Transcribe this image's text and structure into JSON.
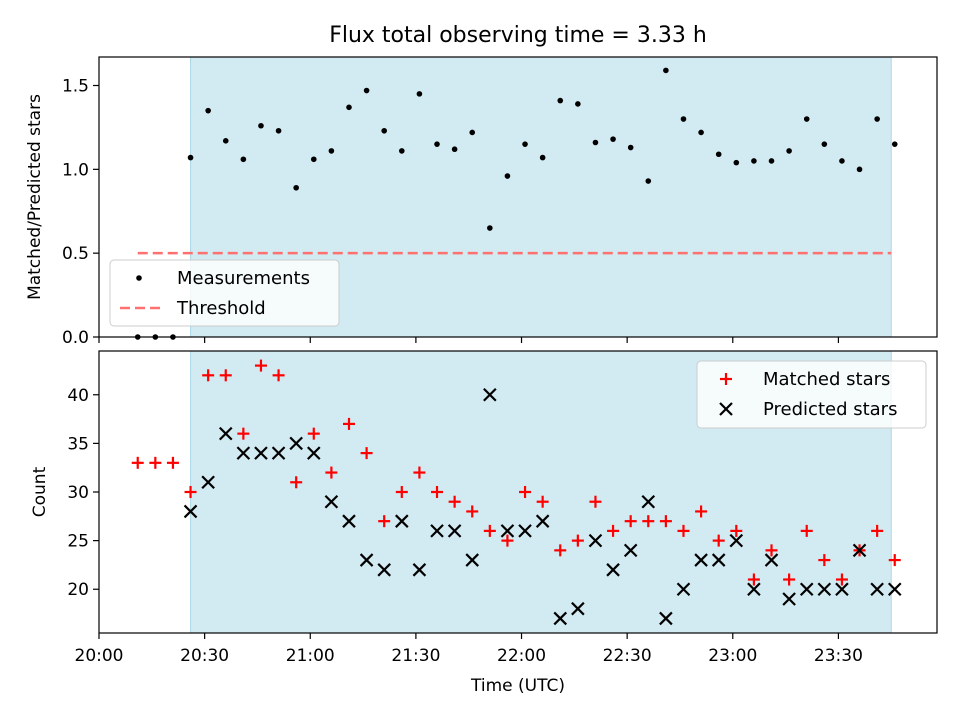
{
  "chart_data": [
    {
      "type": "scatter",
      "title": "Flux total observing time = 3.33 h",
      "xlabel": "",
      "ylabel": "Matched/Predicted stars",
      "xlim": [
        "20:00",
        "23:58"
      ],
      "ylim": [
        0,
        1.67
      ],
      "yticks": [
        "0.0",
        "0.5",
        "1.0",
        "1.5"
      ],
      "shaded_span": {
        "from": "20:26",
        "to": "23:45",
        "color": "#add8e6"
      },
      "threshold": {
        "name": "Threshold",
        "value": 0.5,
        "from": "20:11",
        "to": "23:45",
        "color": "#ff7070"
      },
      "legend_position": "lower-left",
      "series": [
        {
          "name": "Measurements",
          "color": "#000000",
          "points": [
            [
              "20:11",
              0.0
            ],
            [
              "20:16",
              0.0
            ],
            [
              "20:21",
              0.0
            ],
            [
              "20:26",
              1.07
            ],
            [
              "20:31",
              1.35
            ],
            [
              "20:36",
              1.17
            ],
            [
              "20:41",
              1.06
            ],
            [
              "20:46",
              1.26
            ],
            [
              "20:51",
              1.23
            ],
            [
              "20:56",
              0.89
            ],
            [
              "21:01",
              1.06
            ],
            [
              "21:06",
              1.11
            ],
            [
              "21:11",
              1.37
            ],
            [
              "21:16",
              1.47
            ],
            [
              "21:21",
              1.23
            ],
            [
              "21:26",
              1.11
            ],
            [
              "21:31",
              1.45
            ],
            [
              "21:36",
              1.15
            ],
            [
              "21:41",
              1.12
            ],
            [
              "21:46",
              1.22
            ],
            [
              "21:51",
              0.65
            ],
            [
              "21:56",
              0.96
            ],
            [
              "22:01",
              1.15
            ],
            [
              "22:06",
              1.07
            ],
            [
              "22:11",
              1.41
            ],
            [
              "22:16",
              1.39
            ],
            [
              "22:21",
              1.16
            ],
            [
              "22:26",
              1.18
            ],
            [
              "22:31",
              1.13
            ],
            [
              "22:36",
              0.93
            ],
            [
              "22:41",
              1.59
            ],
            [
              "22:46",
              1.3
            ],
            [
              "22:51",
              1.22
            ],
            [
              "22:56",
              1.09
            ],
            [
              "23:01",
              1.04
            ],
            [
              "23:06",
              1.05
            ],
            [
              "23:11",
              1.05
            ],
            [
              "23:16",
              1.11
            ],
            [
              "23:21",
              1.3
            ],
            [
              "23:26",
              1.15
            ],
            [
              "23:31",
              1.05
            ],
            [
              "23:36",
              1.0
            ],
            [
              "23:41",
              1.3
            ],
            [
              "23:46",
              1.15
            ]
          ]
        }
      ]
    },
    {
      "type": "scatter",
      "title": "",
      "xlabel": "Time (UTC)",
      "ylabel": "Count",
      "xlim": [
        "20:00",
        "23:58"
      ],
      "ylim": [
        15.5,
        44.5
      ],
      "xticks": [
        "20:00",
        "20:30",
        "21:00",
        "21:30",
        "22:00",
        "22:30",
        "23:00",
        "23:30"
      ],
      "yticks": [
        "20",
        "25",
        "30",
        "35",
        "40"
      ],
      "shaded_span": {
        "from": "20:26",
        "to": "23:45",
        "color": "#add8e6"
      },
      "legend_position": "upper-right",
      "series": [
        {
          "name": "Matched stars",
          "marker": "plus",
          "color": "#ff0000",
          "points": [
            [
              "20:11",
              33
            ],
            [
              "20:16",
              33
            ],
            [
              "20:21",
              33
            ],
            [
              "20:26",
              30
            ],
            [
              "20:31",
              42
            ],
            [
              "20:36",
              42
            ],
            [
              "20:41",
              36
            ],
            [
              "20:46",
              43
            ],
            [
              "20:51",
              42
            ],
            [
              "20:56",
              31
            ],
            [
              "21:01",
              36
            ],
            [
              "21:06",
              32
            ],
            [
              "21:11",
              37
            ],
            [
              "21:16",
              34
            ],
            [
              "21:21",
              27
            ],
            [
              "21:26",
              30
            ],
            [
              "21:31",
              32
            ],
            [
              "21:36",
              30
            ],
            [
              "21:41",
              29
            ],
            [
              "21:46",
              28
            ],
            [
              "21:51",
              26
            ],
            [
              "21:56",
              25
            ],
            [
              "22:01",
              30
            ],
            [
              "22:06",
              29
            ],
            [
              "22:11",
              24
            ],
            [
              "22:16",
              25
            ],
            [
              "22:21",
              29
            ],
            [
              "22:26",
              26
            ],
            [
              "22:31",
              27
            ],
            [
              "22:36",
              27
            ],
            [
              "22:41",
              27
            ],
            [
              "22:46",
              26
            ],
            [
              "22:51",
              28
            ],
            [
              "22:56",
              25
            ],
            [
              "23:01",
              26
            ],
            [
              "23:06",
              21
            ],
            [
              "23:11",
              24
            ],
            [
              "23:16",
              21
            ],
            [
              "23:21",
              26
            ],
            [
              "23:26",
              23
            ],
            [
              "23:31",
              21
            ],
            [
              "23:36",
              24
            ],
            [
              "23:41",
              26
            ],
            [
              "23:46",
              23
            ]
          ]
        },
        {
          "name": "Predicted stars",
          "marker": "x",
          "color": "#000000",
          "points": [
            [
              "20:26",
              28
            ],
            [
              "20:31",
              31
            ],
            [
              "20:36",
              36
            ],
            [
              "20:41",
              34
            ],
            [
              "20:46",
              34
            ],
            [
              "20:51",
              34
            ],
            [
              "20:56",
              35
            ],
            [
              "21:01",
              34
            ],
            [
              "21:06",
              29
            ],
            [
              "21:11",
              27
            ],
            [
              "21:16",
              23
            ],
            [
              "21:21",
              22
            ],
            [
              "21:26",
              27
            ],
            [
              "21:31",
              22
            ],
            [
              "21:36",
              26
            ],
            [
              "21:41",
              26
            ],
            [
              "21:46",
              23
            ],
            [
              "21:51",
              40
            ],
            [
              "21:56",
              26
            ],
            [
              "22:01",
              26
            ],
            [
              "22:06",
              27
            ],
            [
              "22:11",
              17
            ],
            [
              "22:16",
              18
            ],
            [
              "22:21",
              25
            ],
            [
              "22:26",
              22
            ],
            [
              "22:31",
              24
            ],
            [
              "22:36",
              29
            ],
            [
              "22:41",
              17
            ],
            [
              "22:46",
              20
            ],
            [
              "22:51",
              23
            ],
            [
              "22:56",
              23
            ],
            [
              "23:01",
              25
            ],
            [
              "23:06",
              20
            ],
            [
              "23:11",
              23
            ],
            [
              "23:16",
              19
            ],
            [
              "23:21",
              20
            ],
            [
              "23:26",
              20
            ],
            [
              "23:31",
              20
            ],
            [
              "23:36",
              24
            ],
            [
              "23:41",
              20
            ],
            [
              "23:46",
              20
            ]
          ]
        }
      ]
    }
  ]
}
